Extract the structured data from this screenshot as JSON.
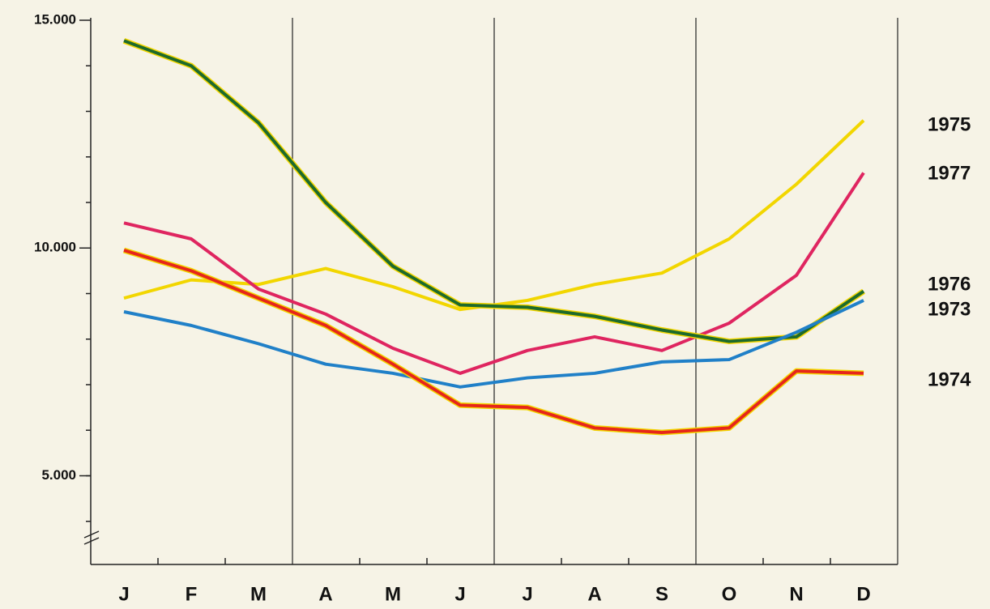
{
  "chart_data": {
    "type": "line",
    "categories": [
      "J",
      "F",
      "M",
      "A",
      "M",
      "J",
      "J",
      "A",
      "S",
      "O",
      "N",
      "D"
    ],
    "ylim": [
      3000,
      15000
    ],
    "yticks": [
      {
        "value": 5000,
        "label": "5.000"
      },
      {
        "value": 10000,
        "label": "10.000"
      },
      {
        "value": 15000,
        "label": "15.000"
      }
    ],
    "series": [
      {
        "name": "1975",
        "color": "#f2d600",
        "values": [
          8900,
          9300,
          9200,
          9550,
          9150,
          8650,
          8850,
          9200,
          9450,
          10200,
          11400,
          12800
        ]
      },
      {
        "name": "1977",
        "color": "#df2560",
        "values": [
          10550,
          10200,
          9100,
          8550,
          7800,
          7250,
          7750,
          8050,
          7750,
          8350,
          9400,
          11650
        ]
      },
      {
        "name": "1976",
        "color": "#1d6a2c",
        "outline": "#f2d600",
        "values": [
          14550,
          14000,
          12750,
          11000,
          9600,
          8750,
          8700,
          8500,
          8200,
          7950,
          8050,
          9050
        ]
      },
      {
        "name": "1973",
        "color": "#2080c8",
        "values": [
          8600,
          8300,
          7900,
          7450,
          7250,
          6950,
          7150,
          7250,
          7500,
          7550,
          8150,
          8850
        ]
      },
      {
        "name": "1974",
        "color": "#e6261b",
        "outline": "#f2d600",
        "values": [
          9950,
          9500,
          8900,
          8300,
          7450,
          6550,
          6500,
          6050,
          5950,
          6050,
          7300,
          7250
        ]
      }
    ]
  }
}
